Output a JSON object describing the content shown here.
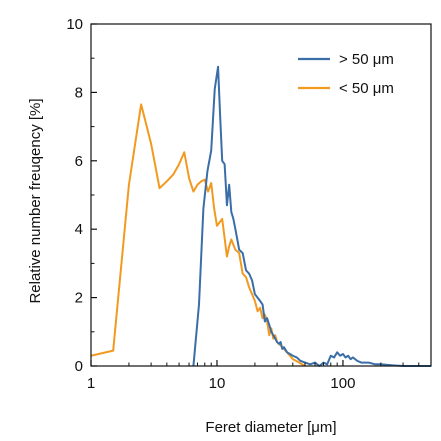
{
  "chart_data": {
    "type": "line",
    "xlabel": "Feret diameter [μm]",
    "ylabel": "Relative number freuqency [%]",
    "x_scale": "log",
    "xlim": [
      1,
      500
    ],
    "ylim": [
      0,
      10
    ],
    "x_ticks": [
      1,
      10,
      100
    ],
    "x_tick_labels": [
      "1",
      "10",
      "100"
    ],
    "y_ticks": [
      0,
      2,
      4,
      6,
      8,
      10
    ],
    "y_tick_labels": [
      "0",
      "2",
      "4",
      "6",
      "8",
      "10"
    ],
    "grid": false,
    "legend_position": "top-right",
    "series": [
      {
        "name": "> 50 μm",
        "color": "#3a6ea8",
        "x": [
          6.5,
          7.2,
          7.8,
          8.4,
          9.0,
          9.6,
          10.2,
          10.6,
          11.0,
          11.5,
          12.0,
          12.5,
          13.0,
          13.5,
          14.0,
          14.5,
          15.0,
          16.0,
          17.0,
          18.0,
          19.0,
          20.0,
          21.0,
          22.0,
          23.0,
          24.0,
          25.0,
          26.0,
          27.0,
          28.0,
          29.0,
          30.0,
          31.0,
          32.0,
          33.0,
          34.0,
          36.0,
          38.0,
          40.0,
          43.0,
          46.0,
          50.0,
          55.0,
          60.0,
          65.0,
          70.0,
          75.0,
          80.0,
          85.0,
          90.0,
          95.0,
          100.0,
          105.0,
          110.0,
          115.0,
          120.0,
          130.0,
          140.0,
          160.0,
          180.0,
          200.0,
          250.0,
          300.0,
          400.0,
          500.0
        ],
        "values": [
          0.0,
          1.8,
          4.6,
          5.7,
          6.3,
          8.1,
          8.75,
          7.3,
          6.0,
          5.9,
          4.7,
          5.3,
          4.5,
          4.3,
          4.0,
          3.7,
          3.4,
          3.3,
          2.8,
          2.7,
          2.5,
          2.1,
          2.0,
          1.9,
          1.8,
          1.3,
          1.4,
          1.2,
          1.0,
          0.9,
          0.8,
          0.7,
          0.65,
          0.7,
          0.5,
          0.55,
          0.4,
          0.35,
          0.3,
          0.25,
          0.15,
          0.1,
          0.05,
          0.1,
          0.0,
          0.1,
          0.05,
          0.3,
          0.25,
          0.4,
          0.3,
          0.35,
          0.25,
          0.3,
          0.2,
          0.25,
          0.15,
          0.1,
          0.1,
          0.05,
          0.05,
          0.02,
          0.0,
          0.0,
          0.0
        ]
      },
      {
        "name": "< 50 μm",
        "color": "#f29a1f",
        "x": [
          1.0,
          1.5,
          2.0,
          2.5,
          3.0,
          3.5,
          4.0,
          4.5,
          5.0,
          5.5,
          6.0,
          6.5,
          7.0,
          7.5,
          8.0,
          8.5,
          9.0,
          9.5,
          10.0,
          11.0,
          12.0,
          12.5,
          13.0,
          14.0,
          15.0,
          16.0,
          17.0,
          18.0,
          19.0,
          20.0,
          21.0,
          22.0,
          23.0,
          24.0,
          25.0,
          26.0,
          27.0,
          28.0,
          29.0,
          30.0,
          32.0,
          34.0,
          36.0,
          38.0,
          40.0,
          45.0,
          50.0
        ],
        "values": [
          0.3,
          0.45,
          5.3,
          7.65,
          6.5,
          5.2,
          5.4,
          5.6,
          5.9,
          6.25,
          5.5,
          5.1,
          5.3,
          5.4,
          5.45,
          5.1,
          5.35,
          4.6,
          4.1,
          4.3,
          3.2,
          3.5,
          3.7,
          3.4,
          3.3,
          2.7,
          2.6,
          2.3,
          2.1,
          1.9,
          1.6,
          1.7,
          1.4,
          1.5,
          1.3,
          0.9,
          1.1,
          0.8,
          0.9,
          0.7,
          0.6,
          0.5,
          0.4,
          0.3,
          0.2,
          0.1,
          0.0
        ]
      }
    ]
  }
}
